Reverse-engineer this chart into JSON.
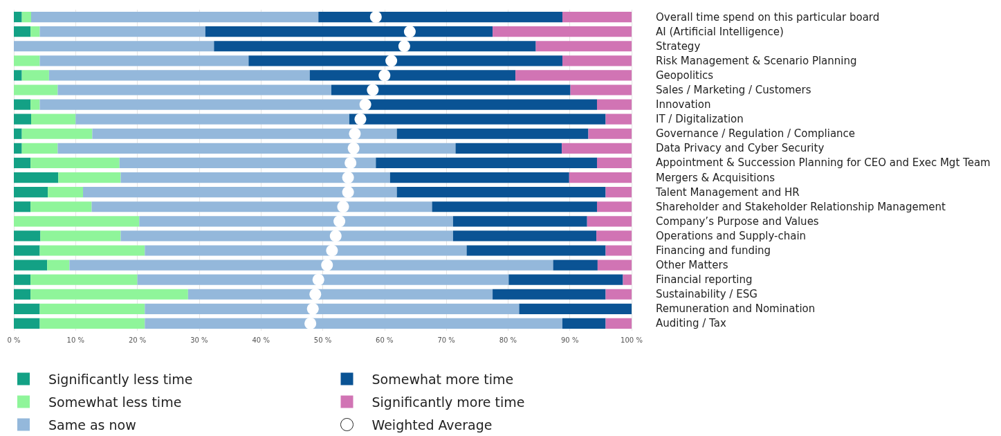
{
  "chart_data": {
    "type": "bar",
    "orientation": "horizontal",
    "stacked": true,
    "categories": [
      "Overall time spend on this particular board",
      "AI (Artificial Intelligence)",
      "Strategy",
      "Risk Management & Scenario Planning",
      "Geopolitics",
      "Sales / Marketing / Customers",
      "Innovation",
      "IT / Digitalization",
      "Governance / Regulation / Compliance",
      "Data Privacy and Cyber Security",
      "Appointment & Succession Planning for CEO and Exec Mgt Team",
      "Mergers & Acquisitions",
      "Talent Management and HR",
      "Shareholder and Stakeholder Relationship Management",
      "Company’s Purpose and Values",
      "Operations and Supply-chain",
      "Financing and funding",
      "Other Matters",
      "Financial reporting",
      "Sustainability / ESG",
      "Remuneration and Nomination",
      "Auditing / Tax"
    ],
    "series": [
      {
        "name": "Significantly less time",
        "color": "#13a185",
        "values": [
          1.3,
          2.7,
          0,
          0,
          1.3,
          0,
          2.7,
          2.8,
          1.3,
          1.3,
          2.7,
          7.2,
          5.5,
          2.7,
          0,
          4.3,
          4.2,
          5.4,
          2.7,
          2.7,
          4.2,
          4.2
        ]
      },
      {
        "name": "Somewhat less time",
        "color": "#8ff59a",
        "values": [
          1.5,
          1.5,
          0,
          4.2,
          4.4,
          7.1,
          1.5,
          7.2,
          11.4,
          5.8,
          14.4,
          10.1,
          5.7,
          9.9,
          20.3,
          13.0,
          17.0,
          3.6,
          17.3,
          25.5,
          17.0,
          17.0
        ]
      },
      {
        "name": "Same as now",
        "color": "#94b8db",
        "values": [
          46.5,
          26.8,
          32.4,
          33.8,
          42.2,
          44.3,
          52.7,
          44.3,
          49.3,
          64.4,
          41.5,
          43.6,
          50.8,
          55.1,
          50.8,
          53.8,
          52.1,
          78.3,
          60.1,
          49.3,
          60.6,
          67.6
        ]
      },
      {
        "name": "Somewhat more time",
        "color": "#0a5394",
        "values": [
          39.5,
          46.5,
          52.1,
          50.8,
          33.3,
          38.7,
          37.5,
          41.5,
          31.0,
          17.2,
          35.8,
          29.0,
          33.8,
          26.7,
          21.7,
          23.2,
          22.5,
          7.2,
          18.5,
          18.3,
          18.2,
          7.0
        ]
      },
      {
        "name": "Significantly more time",
        "color": "#d174b4",
        "values": [
          11.2,
          22.5,
          15.5,
          11.2,
          18.8,
          9.9,
          5.6,
          4.2,
          7.0,
          11.3,
          5.6,
          10.1,
          4.2,
          5.6,
          7.2,
          5.7,
          4.2,
          5.5,
          1.4,
          4.2,
          0,
          4.2
        ]
      },
      {
        "name": "Weighted Average",
        "type": "scatter",
        "color": "#ffffff",
        "values": [
          58.6,
          64.1,
          63.2,
          61.1,
          60.0,
          58.1,
          56.9,
          56.1,
          55.2,
          55.0,
          54.5,
          54.1,
          54.1,
          53.3,
          52.7,
          52.1,
          51.5,
          50.7,
          49.3,
          48.8,
          48.4,
          48.0
        ]
      }
    ],
    "xlim": [
      0,
      100
    ],
    "xticks": [
      {
        "value": 0,
        "label": "0 %"
      },
      {
        "value": 10,
        "label": "10 %"
      },
      {
        "value": 20,
        "label": "20 %"
      },
      {
        "value": 30,
        "label": "30 %"
      },
      {
        "value": 40,
        "label": "40 %"
      },
      {
        "value": 50,
        "label": "50 %"
      },
      {
        "value": 60,
        "label": "60 %"
      },
      {
        "value": 70,
        "label": "70 %"
      },
      {
        "value": 80,
        "label": "80 %"
      },
      {
        "value": 90,
        "label": "90 %"
      },
      {
        "value": 100,
        "label": "100 %"
      }
    ],
    "grid": "x",
    "legend": "bottom left",
    "marker": "circle"
  }
}
